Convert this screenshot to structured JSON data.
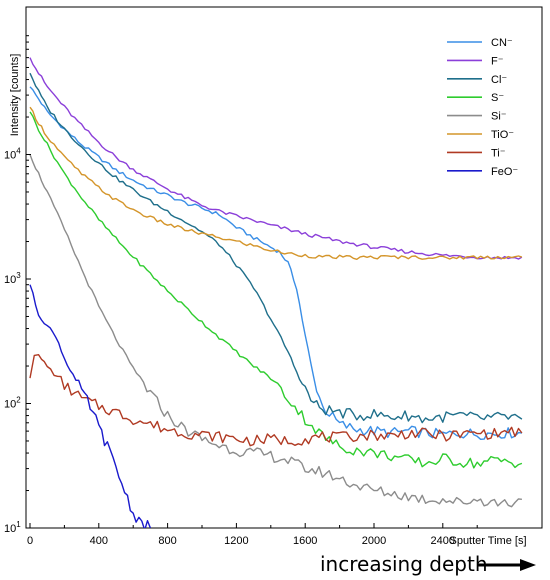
{
  "chart_data": {
    "type": "line",
    "title": "",
    "xlabel": "Sputter Time [s]",
    "ylabel": "Intensity [counts]",
    "x_scale": "linear",
    "y_scale": "log",
    "xlim": [
      0,
      3000
    ],
    "ylim": [
      10,
      100000
    ],
    "x_ticks": [
      0,
      400,
      800,
      1200,
      1600,
      2000,
      2400
    ],
    "x_tick_labels": [
      "0",
      "400",
      "800",
      "1200",
      "1600",
      "2000",
      "2400"
    ],
    "y_ticks": [
      10,
      100,
      1000,
      10000
    ],
    "y_tick_labels": [
      "10",
      "10",
      "10",
      "10"
    ],
    "y_tick_exponents": [
      "1",
      "2",
      "3",
      "4"
    ],
    "grid": false,
    "legend_position": "top-right",
    "depth_arrow_label": "increasing depth",
    "series": [
      {
        "name": "CN⁻",
        "color": "#3a8ee6",
        "x": [
          0,
          50,
          100,
          200,
          300,
          400,
          500,
          600,
          700,
          800,
          900,
          1000,
          1100,
          1200,
          1300,
          1400,
          1450,
          1500,
          1550,
          1600,
          1650,
          1700,
          1800,
          1900,
          2000,
          2100,
          2200,
          2300,
          2400,
          2500,
          2600,
          2800,
          2860
        ],
        "y": [
          35000,
          28000,
          22000,
          16000,
          12000,
          9500,
          7500,
          6200,
          5300,
          4700,
          4100,
          3700,
          3300,
          2600,
          2150,
          1800,
          1650,
          1350,
          850,
          350,
          160,
          95,
          68,
          62,
          60,
          58,
          60,
          58,
          56,
          58,
          57,
          58,
          58
        ]
      },
      {
        "name": "F⁻",
        "color": "#8b3fd9",
        "x": [
          0,
          50,
          100,
          200,
          300,
          400,
          500,
          600,
          700,
          800,
          900,
          1000,
          1100,
          1200,
          1300,
          1400,
          1500,
          1600,
          1700,
          1800,
          1900,
          2000,
          2200,
          2400,
          2600,
          2800,
          2860
        ],
        "y": [
          60000,
          45000,
          35000,
          24000,
          17000,
          12500,
          9500,
          7600,
          6300,
          5300,
          4500,
          3900,
          3500,
          3200,
          2950,
          2700,
          2500,
          2300,
          2150,
          2000,
          1900,
          1800,
          1650,
          1550,
          1500,
          1480,
          1500
        ]
      },
      {
        "name": "Cl⁻",
        "color": "#1f6f8b",
        "x": [
          0,
          50,
          100,
          200,
          300,
          400,
          500,
          600,
          700,
          800,
          900,
          1000,
          1100,
          1200,
          1300,
          1400,
          1500,
          1550,
          1600,
          1650,
          1700,
          1800,
          1900,
          2000,
          2100,
          2200,
          2300,
          2400,
          2500,
          2600,
          2800,
          2860
        ],
        "y": [
          45000,
          32000,
          24000,
          16000,
          11500,
          8500,
          6500,
          5200,
          4200,
          3500,
          2900,
          2400,
          1900,
          1300,
          850,
          480,
          260,
          180,
          130,
          100,
          90,
          85,
          80,
          82,
          78,
          80,
          75,
          78,
          80,
          76,
          78,
          75
        ]
      },
      {
        "name": "S⁻",
        "color": "#2ecc2e",
        "x": [
          0,
          50,
          100,
          200,
          300,
          400,
          500,
          600,
          700,
          800,
          900,
          1000,
          1100,
          1200,
          1300,
          1400,
          1500,
          1600,
          1700,
          1800,
          1900,
          2000,
          2100,
          2200,
          2300,
          2400,
          2500,
          2600,
          2700,
          2800,
          2860
        ],
        "y": [
          22000,
          16000,
          12000,
          7000,
          4500,
          3000,
          2100,
          1500,
          1100,
          800,
          600,
          450,
          340,
          260,
          200,
          160,
          110,
          75,
          55,
          45,
          42,
          40,
          38,
          35,
          33,
          36,
          34,
          33,
          35,
          34,
          33
        ]
      },
      {
        "name": "Si⁻",
        "color": "#8c8c8c",
        "x": [
          0,
          50,
          100,
          200,
          300,
          400,
          500,
          600,
          700,
          800,
          900,
          1000,
          1100,
          1200,
          1300,
          1400,
          1500,
          1600,
          1700,
          1800,
          1900,
          2000,
          2100,
          2200,
          2300,
          2400,
          2500,
          2600,
          2700,
          2800,
          2860
        ],
        "y": [
          10000,
          7000,
          5000,
          2500,
          1200,
          600,
          330,
          190,
          120,
          80,
          62,
          52,
          46,
          42,
          40,
          38,
          35,
          30,
          28,
          25,
          22,
          20,
          19,
          18,
          17,
          17,
          16,
          17,
          16,
          16,
          17
        ]
      },
      {
        "name": "TiO⁻",
        "color": "#d4952a",
        "x": [
          0,
          50,
          100,
          200,
          300,
          400,
          500,
          600,
          700,
          800,
          900,
          1000,
          1100,
          1200,
          1300,
          1400,
          1500,
          1600,
          1700,
          1800,
          1900,
          2000,
          2200,
          2400,
          2600,
          2800,
          2860
        ],
        "y": [
          24000,
          18000,
          14000,
          9500,
          7000,
          5400,
          4300,
          3600,
          3100,
          2750,
          2500,
          2300,
          2150,
          2000,
          1850,
          1700,
          1600,
          1550,
          1500,
          1500,
          1480,
          1500,
          1500,
          1480,
          1500,
          1500,
          1500
        ]
      },
      {
        "name": "Ti⁻",
        "color": "#b03a23",
        "x": [
          0,
          25,
          50,
          100,
          200,
          300,
          400,
          500,
          600,
          700,
          800,
          900,
          1000,
          1100,
          1200,
          1300,
          1400,
          1500,
          1600,
          1700,
          1800,
          1900,
          2000,
          2100,
          2200,
          2300,
          2400,
          2500,
          2600,
          2700,
          2800,
          2860
        ],
        "y": [
          160,
          250,
          240,
          200,
          140,
          110,
          95,
          85,
          75,
          68,
          62,
          58,
          56,
          54,
          52,
          50,
          52,
          50,
          52,
          54,
          53,
          55,
          56,
          55,
          58,
          57,
          55,
          56,
          58,
          57,
          60,
          58
        ]
      },
      {
        "name": "FeO⁻",
        "color": "#1a1acc",
        "x": [
          0,
          50,
          100,
          150,
          200,
          250,
          300,
          350,
          400,
          450,
          500,
          550,
          600,
          650,
          700
        ],
        "y": [
          900,
          520,
          420,
          350,
          230,
          170,
          125,
          95,
          65,
          45,
          30,
          20,
          13,
          11,
          10
        ]
      }
    ]
  }
}
